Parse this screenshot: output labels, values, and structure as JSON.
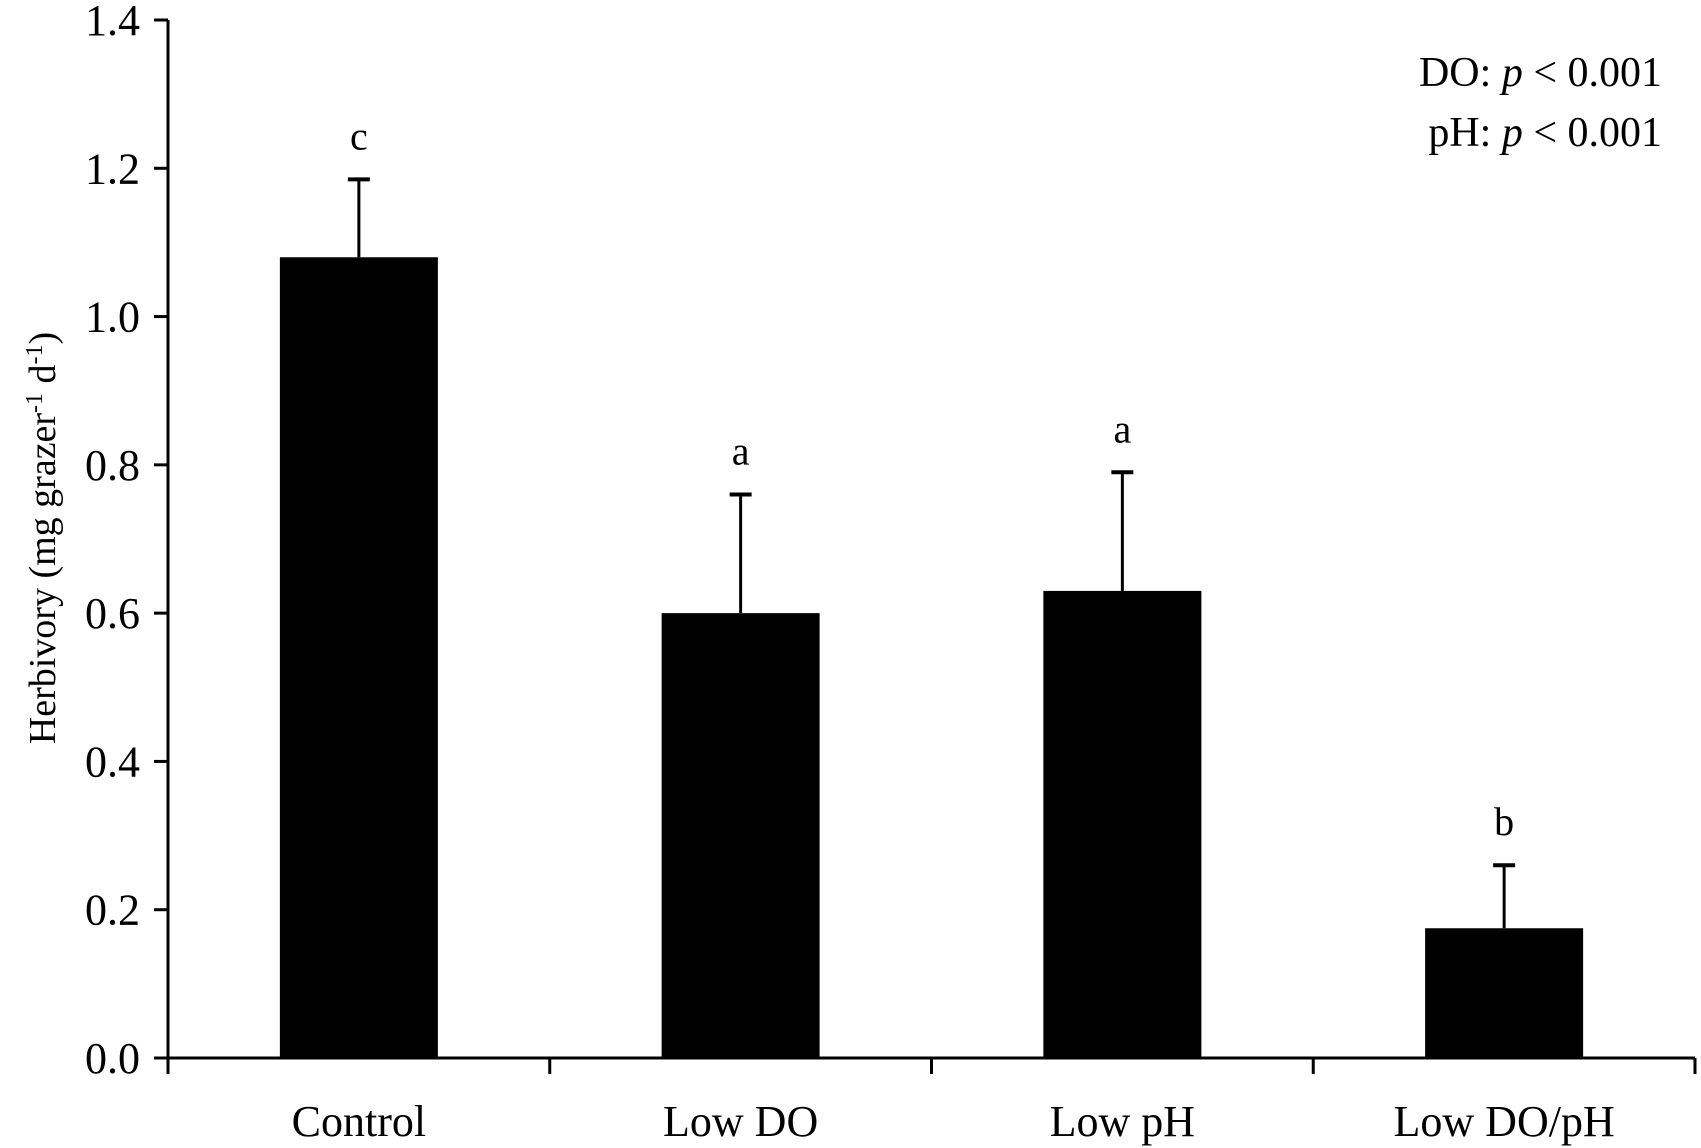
{
  "chart_data": {
    "type": "bar",
    "title": "",
    "xlabel": "",
    "ylabel": {
      "prefix": "Herbivory (mg grazer",
      "sup1": "-1",
      "middle": " d",
      "sup2": "-1",
      "suffix": ")"
    },
    "ylim": [
      0,
      1.4
    ],
    "y_ticks": [
      "0.0",
      "0.2",
      "0.4",
      "0.6",
      "0.8",
      "1.0",
      "1.2",
      "1.4"
    ],
    "categories": [
      "Control",
      "Low DO",
      "Low pH",
      "Low DO/pH"
    ],
    "values": [
      1.08,
      0.6,
      0.63,
      0.175
    ],
    "errors": [
      0.105,
      0.16,
      0.16,
      0.085
    ],
    "significance_letters": [
      "c",
      "a",
      "a",
      "b"
    ],
    "bar_color": "#000000",
    "annotations": [
      {
        "label": "DO: ",
        "p_symbol": "p",
        "relation": " < 0.001"
      },
      {
        "label": "pH: ",
        "p_symbol": "p",
        "relation": " < 0.001"
      }
    ]
  }
}
